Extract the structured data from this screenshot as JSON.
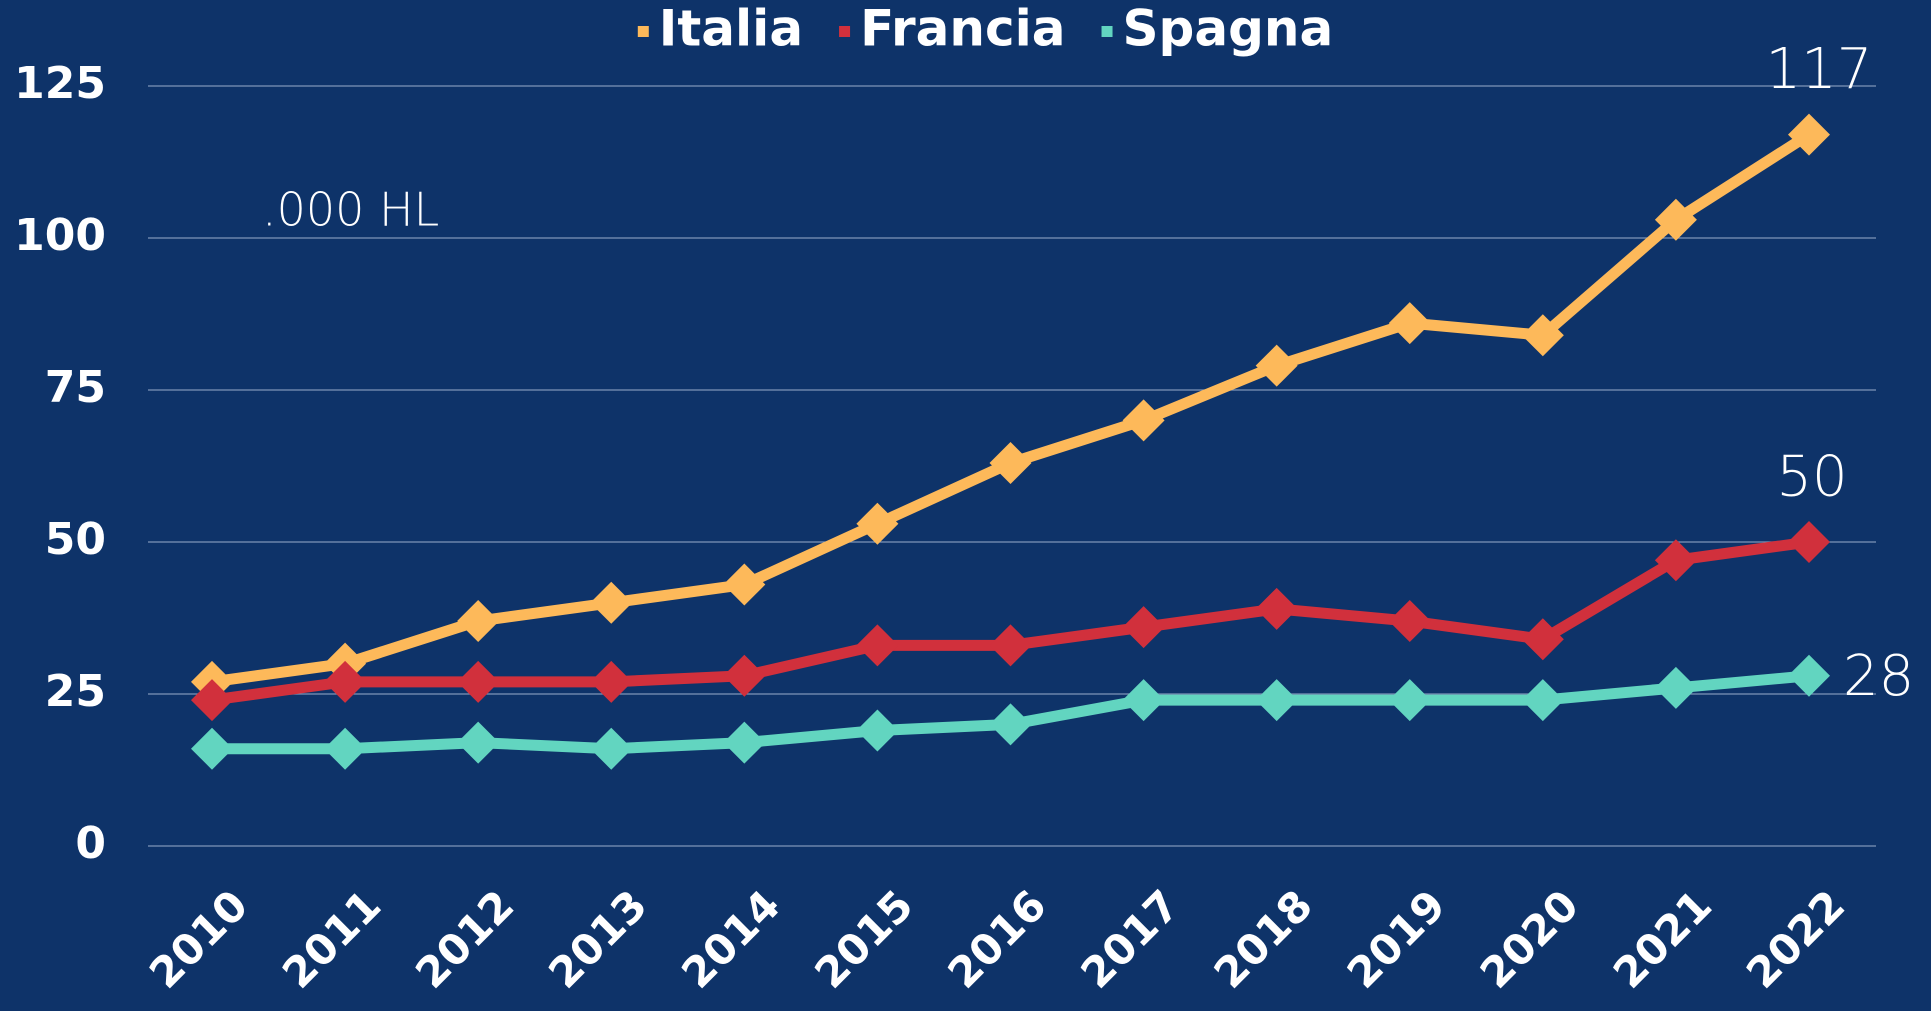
{
  "chart_data": {
    "type": "line",
    "ylabel": ".000 HL",
    "categories": [
      "2010",
      "2011",
      "2012",
      "2013",
      "2014",
      "2015",
      "2016",
      "2017",
      "2018",
      "2019",
      "2020",
      "2021",
      "2022"
    ],
    "series": [
      {
        "name": "Italia",
        "color": "#fdb95a",
        "values": [
          27,
          30,
          37,
          40,
          43,
          53,
          63,
          70,
          79,
          86,
          84,
          103,
          117
        ]
      },
      {
        "name": "Francia",
        "color": "#d1303c",
        "values": [
          24,
          27,
          27,
          27,
          28,
          33,
          33,
          36,
          39,
          37,
          34,
          47,
          50
        ]
      },
      {
        "name": "Spagna",
        "color": "#62d5c0",
        "values": [
          16,
          16,
          17,
          16,
          17,
          19,
          20,
          24,
          24,
          24,
          24,
          26,
          28
        ]
      }
    ],
    "ylim": [
      0,
      125
    ],
    "yticks": [
      0,
      25,
      50,
      75,
      100,
      125
    ],
    "grid": true,
    "legend": "top"
  }
}
